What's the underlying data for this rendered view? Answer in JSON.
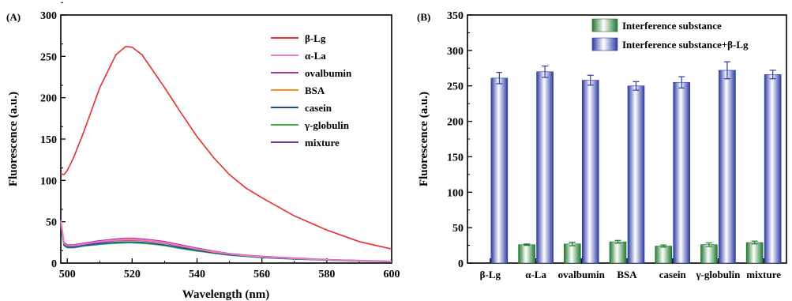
{
  "chart_data": [
    {
      "type": "line",
      "panel_label": "(A)",
      "xlabel": "Wavelength (nm)",
      "ylabel": "Fluorescence (a.u.)",
      "xlim": [
        498,
        600
      ],
      "ylim": [
        0,
        300
      ],
      "xticks": [
        500,
        520,
        540,
        560,
        580,
        600
      ],
      "yticks": [
        0,
        50,
        100,
        150,
        200,
        250,
        300
      ],
      "legend": "top-right",
      "x": [
        498,
        499,
        500,
        502,
        505,
        510,
        515,
        518,
        520,
        523,
        526,
        530,
        535,
        540,
        545,
        550,
        555,
        560,
        570,
        580,
        590,
        600
      ],
      "series": [
        {
          "name": "β-Lg",
          "color": "#ef2b2b",
          "values": [
            108,
            107,
            112,
            128,
            158,
            212,
            252,
            262,
            261,
            252,
            235,
            212,
            182,
            153,
            128,
            107,
            91,
            79,
            57,
            40,
            26,
            17
          ]
        },
        {
          "name": "α-La",
          "color": "#f07ad4",
          "values": [
            52,
            24,
            21,
            21,
            23,
            26,
            28,
            29,
            29,
            28,
            27,
            25,
            21,
            17,
            14,
            11,
            9,
            7.5,
            5.5,
            4,
            3,
            2
          ]
        },
        {
          "name": "ovalbumin",
          "color": "#b0309a",
          "values": [
            52,
            25,
            22,
            22,
            24,
            27,
            29,
            30,
            30,
            29,
            28,
            26,
            22,
            18,
            14.5,
            11.5,
            9.5,
            8,
            6,
            4.2,
            3.2,
            2.2
          ]
        },
        {
          "name": "BSA",
          "color": "#ff8c1a",
          "values": [
            51,
            24,
            21,
            21,
            23,
            26,
            27.5,
            28,
            28,
            27.5,
            26.5,
            24.5,
            20.5,
            17,
            13.5,
            11,
            9,
            7.5,
            5.5,
            4,
            3,
            2
          ]
        },
        {
          "name": "casein",
          "color": "#1e4fa0",
          "values": [
            48,
            22,
            19,
            19,
            21,
            23.5,
            25,
            25.5,
            25.5,
            25,
            24,
            22,
            18.5,
            15.5,
            12.5,
            10,
            8.5,
            7,
            5,
            3.7,
            2.7,
            1.8
          ]
        },
        {
          "name": "γ-globulin",
          "color": "#3cb23c",
          "values": [
            46,
            21,
            18.5,
            18.5,
            20.5,
            22.5,
            24,
            24.5,
            24.5,
            24,
            23,
            21,
            17.5,
            14.5,
            12,
            9.5,
            8,
            6.5,
            4.8,
            3.5,
            2.5,
            1.6
          ]
        },
        {
          "name": "mixture",
          "color": "#7b2fa8",
          "values": [
            50,
            23,
            20,
            20,
            22,
            25,
            27,
            27.5,
            27.5,
            27,
            26,
            24,
            20,
            16.5,
            13,
            10.5,
            8.8,
            7.2,
            5.2,
            3.8,
            2.8,
            1.9
          ]
        }
      ]
    },
    {
      "type": "bar",
      "panel_label": "(B)",
      "xlabel": "",
      "ylabel": "Fluorescence (a.u.)",
      "ylim": [
        0,
        350
      ],
      "yticks": [
        0,
        50,
        100,
        150,
        200,
        250,
        300,
        350
      ],
      "legend": "top",
      "categories": [
        "β-Lg",
        "α-La",
        "ovalbumin",
        "BSA",
        "casein",
        "γ-globulin",
        "mixture"
      ],
      "series": [
        {
          "name": "Interference substance",
          "color": "#2e8b3a",
          "values": [
            null,
            26,
            27,
            30,
            24,
            26,
            29
          ],
          "errors": [
            null,
            1,
            2.5,
            2,
            1.5,
            2.5,
            2
          ]
        },
        {
          "name": "Interference substance+β-Lg",
          "color": "#3f4fb8",
          "values": [
            261,
            270,
            258,
            250,
            255,
            272,
            266
          ],
          "errors": [
            8,
            8,
            7,
            6,
            8,
            12,
            6
          ]
        }
      ]
    }
  ]
}
